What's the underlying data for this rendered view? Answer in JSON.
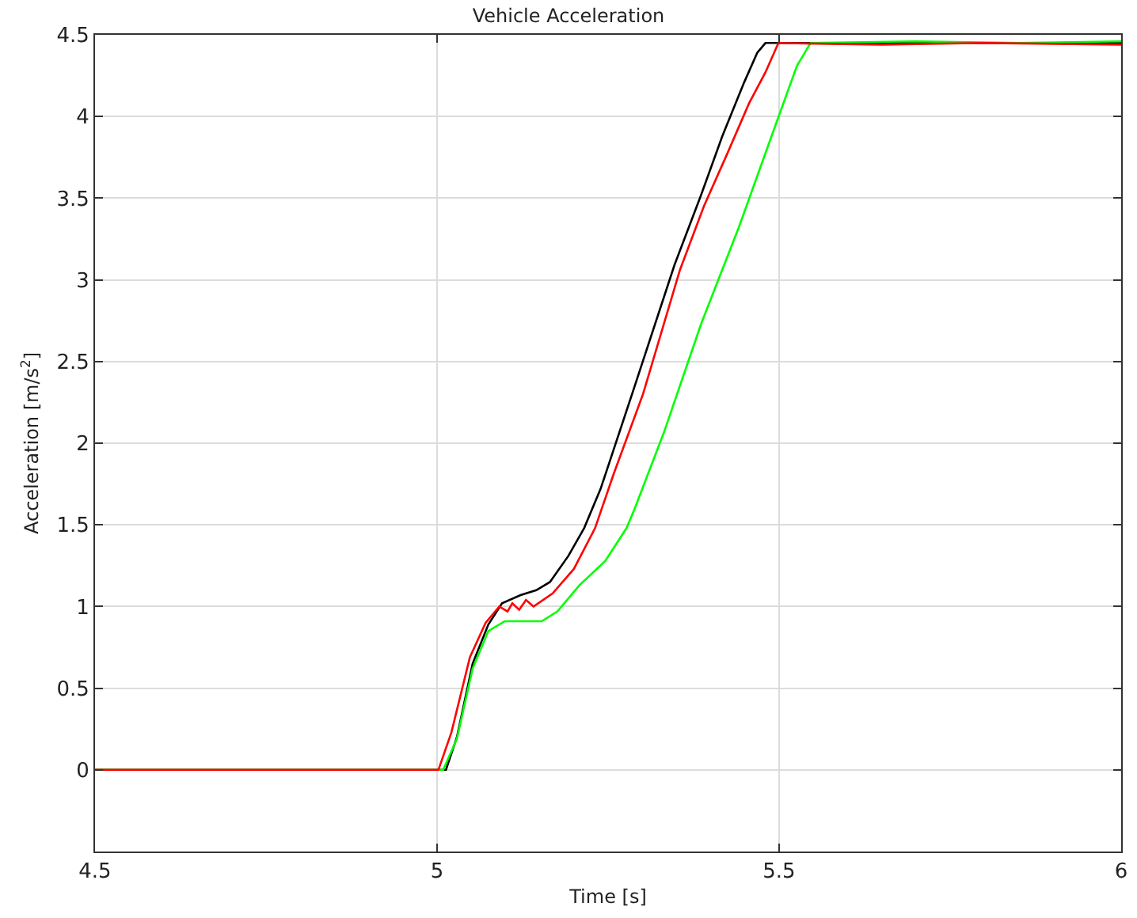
{
  "chart_data": {
    "type": "line",
    "title": "Vehicle Acceleration",
    "xlabel": "Time [s]",
    "ylabel": "Acceleration [m/s$^{2}$]",
    "xlim": [
      4.5,
      6
    ],
    "xticks": [
      4.5,
      5,
      5.5,
      6
    ],
    "ylim": [
      -0.5,
      4.5
    ],
    "yticks": [
      0,
      0.5,
      1,
      1.5,
      2,
      2.5,
      3,
      3.5,
      4,
      4.5
    ],
    "grid": true,
    "line_style": "solid",
    "marker": "none",
    "series": [
      {
        "color": "#000000",
        "x": [
          4.5,
          4.8,
          5.013,
          5.029,
          5.052,
          5.075,
          5.095,
          5.122,
          5.145,
          5.165,
          5.192,
          5.215,
          5.239,
          5.285,
          5.347,
          5.386,
          5.417,
          5.449,
          5.468,
          5.48,
          5.6,
          5.75,
          5.9,
          6
        ],
        "values": [
          0,
          0,
          0,
          0.2,
          0.65,
          0.89,
          1.02,
          1.07,
          1.1,
          1.15,
          1.31,
          1.48,
          1.72,
          2.3,
          3.09,
          3.52,
          3.88,
          4.21,
          4.39,
          4.45,
          4.45,
          4.45,
          4.45,
          4.45
        ]
      },
      {
        "color": "#00ff00",
        "x": [
          4.5,
          4.8,
          5.009,
          5.029,
          5.052,
          5.075,
          5.099,
          5.122,
          5.153,
          5.176,
          5.208,
          5.246,
          5.277,
          5.289,
          5.332,
          5.386,
          5.441,
          5.495,
          5.526,
          5.546,
          5.7,
          5.85,
          6
        ],
        "values": [
          0,
          0,
          0,
          0.19,
          0.62,
          0.85,
          0.91,
          0.91,
          0.91,
          0.97,
          1.13,
          1.28,
          1.48,
          1.6,
          2.07,
          2.73,
          3.32,
          3.95,
          4.31,
          4.45,
          4.46,
          4.45,
          4.46
        ]
      },
      {
        "color": "#ff0000",
        "x": [
          4.5,
          4.8,
          5.002,
          5.021,
          5.048,
          5.071,
          5.091,
          5.103,
          5.11,
          5.12,
          5.13,
          5.141,
          5.169,
          5.2,
          5.231,
          5.258,
          5.301,
          5.355,
          5.39,
          5.425,
          5.456,
          5.48,
          5.499,
          5.65,
          5.8,
          6
        ],
        "values": [
          0,
          0,
          0,
          0.23,
          0.69,
          0.9,
          1.0,
          0.97,
          1.02,
          0.98,
          1.04,
          1.0,
          1.08,
          1.23,
          1.48,
          1.81,
          2.3,
          3.06,
          3.45,
          3.78,
          4.08,
          4.27,
          4.45,
          4.44,
          4.45,
          4.44
        ]
      }
    ]
  }
}
